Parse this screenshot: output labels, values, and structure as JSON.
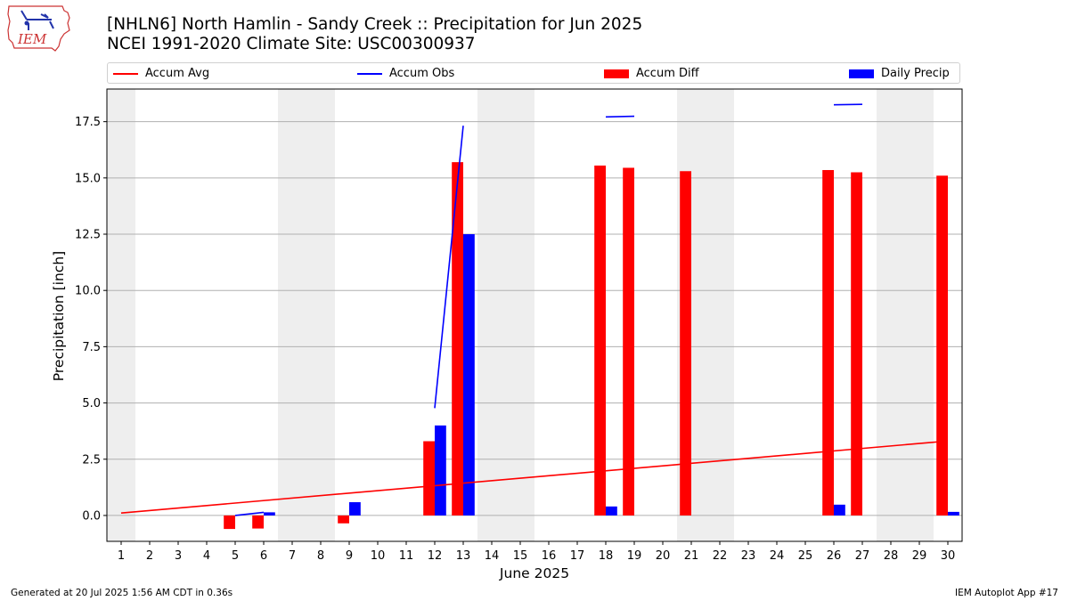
{
  "logo": {
    "text": "IEM",
    "icon": "iowa-state-outline-logo"
  },
  "footer": {
    "generated": "Generated at 20 Jul 2025 1:56 AM CDT in 0.36s",
    "app": "IEM Autoplot App #17"
  },
  "colors": {
    "avg": "#ff0000",
    "obs": "#0000ff",
    "diff": "#ff0000",
    "daily": "#0000ff",
    "weekend_band": "#eeeeee",
    "grid": "#b0b0b0"
  },
  "chart_data": {
    "type": "bar",
    "title": "[NHLN6] North Hamlin - Sandy Creek :: Precipitation for Jun 2025",
    "subtitle": "NCEI 1991-2020 Climate Site: USC00300937",
    "xlabel": "June 2025",
    "ylabel": "Precipitation [inch]",
    "xlim": [
      0.5,
      30.5
    ],
    "ylim": [
      -1.15,
      18.95
    ],
    "yticks": [
      0.0,
      2.5,
      5.0,
      7.5,
      10.0,
      12.5,
      15.0,
      17.5
    ],
    "ytick_labels": [
      "0.0",
      "2.5",
      "5.0",
      "7.5",
      "10.0",
      "12.5",
      "15.0",
      "17.5"
    ],
    "grid": true,
    "legend_position": "top, above plot",
    "legend": [
      "Accum Avg",
      "Accum Obs",
      "Accum Diff",
      "Daily Precip"
    ],
    "days": [
      1,
      2,
      3,
      4,
      5,
      6,
      7,
      8,
      9,
      10,
      11,
      12,
      13,
      14,
      15,
      16,
      17,
      18,
      19,
      20,
      21,
      22,
      23,
      24,
      25,
      26,
      27,
      28,
      29,
      30
    ],
    "weekend_bands": [
      [
        0.5,
        1.5
      ],
      [
        6.5,
        8.5
      ],
      [
        13.5,
        15.5
      ],
      [
        20.5,
        22.5
      ],
      [
        27.5,
        29.5
      ]
    ],
    "accum_avg": {
      "start": [
        1,
        0.11
      ],
      "end": [
        30,
        3.31
      ]
    },
    "accum_obs_segments": [
      [
        [
          5,
          0.0
        ],
        [
          6,
          0.14
        ]
      ],
      [
        [
          12,
          4.77
        ],
        [
          13,
          17.32
        ]
      ],
      [
        [
          18,
          17.71
        ],
        [
          19,
          17.74
        ]
      ],
      [
        [
          26,
          18.25
        ],
        [
          27,
          18.27
        ]
      ]
    ],
    "accum_diff": [
      {
        "day": 5,
        "value": -0.6
      },
      {
        "day": 6,
        "value": -0.58
      },
      {
        "day": 9,
        "value": -0.35
      },
      {
        "day": 12,
        "value": 3.3
      },
      {
        "day": 13,
        "value": 15.7
      },
      {
        "day": 18,
        "value": 15.55
      },
      {
        "day": 19,
        "value": 15.45
      },
      {
        "day": 21,
        "value": 15.3
      },
      {
        "day": 26,
        "value": 15.35
      },
      {
        "day": 27,
        "value": 15.25
      },
      {
        "day": 30,
        "value": 15.1
      }
    ],
    "daily_precip": [
      {
        "day": 6,
        "value": 0.14
      },
      {
        "day": 9,
        "value": 0.59
      },
      {
        "day": 12,
        "value": 4.0
      },
      {
        "day": 13,
        "value": 12.5
      },
      {
        "day": 18,
        "value": 0.4
      },
      {
        "day": 26,
        "value": 0.48
      },
      {
        "day": 30,
        "value": 0.16
      }
    ]
  }
}
